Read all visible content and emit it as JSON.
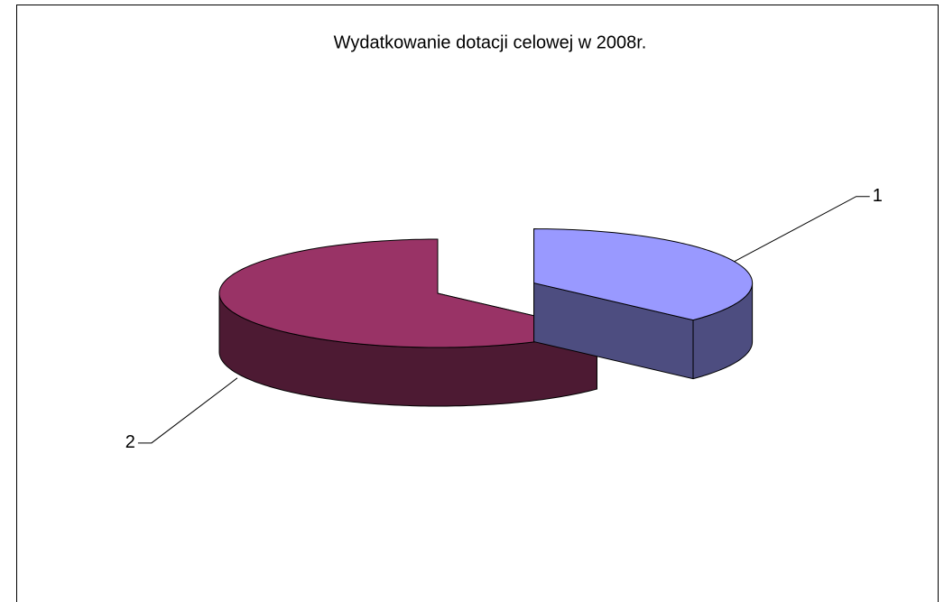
{
  "chart_data": {
    "type": "pie",
    "title": "Wydatkowanie dotacji celowej w 2008r.",
    "categories": [
      "1",
      "2"
    ],
    "values": [
      37,
      63
    ],
    "colors": [
      "#9999ff",
      "#993366"
    ]
  }
}
